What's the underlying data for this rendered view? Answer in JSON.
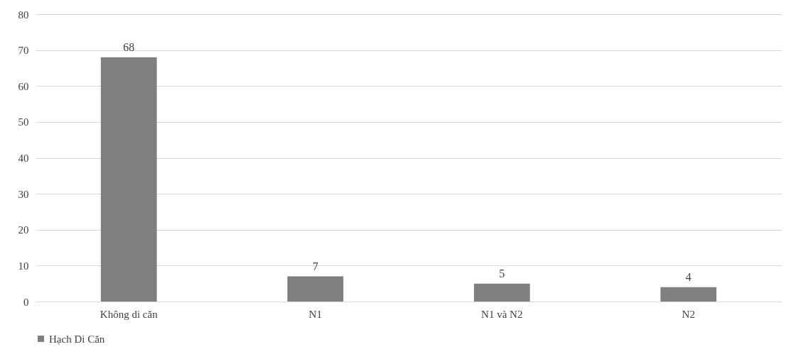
{
  "chart_data": {
    "type": "bar",
    "categories": [
      "Không di căn",
      "N1",
      "N1 và N2",
      "N2"
    ],
    "series": [
      {
        "name": "Hạch Di Căn",
        "color": "#7f7f7f",
        "values": [
          68,
          7,
          5,
          4
        ]
      }
    ],
    "ylim": [
      0,
      80
    ],
    "yticks": [
      0,
      10,
      20,
      30,
      40,
      50,
      60,
      70,
      80
    ],
    "grid": "y",
    "legend": "bottom",
    "data_labels": true
  }
}
